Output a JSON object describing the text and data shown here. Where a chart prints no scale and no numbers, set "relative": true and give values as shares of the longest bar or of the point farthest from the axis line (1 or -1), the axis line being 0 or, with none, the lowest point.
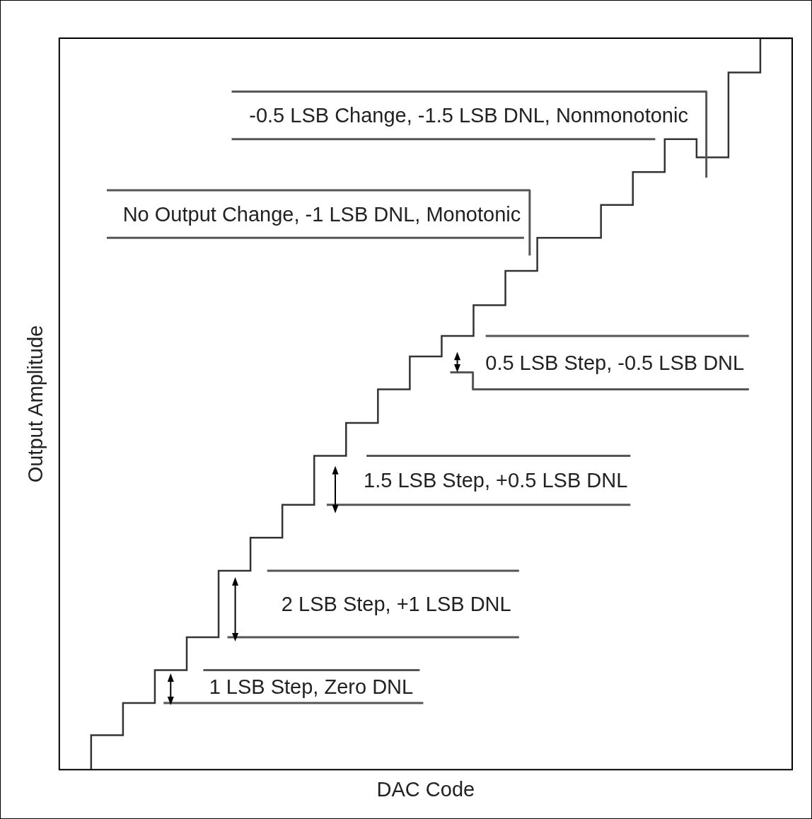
{
  "chart_data": {
    "type": "step",
    "xlabel": "DAC Code",
    "ylabel": "Output Amplitude",
    "relative": true,
    "tick_labels": false,
    "grid": false,
    "legend": false,
    "marker": "none",
    "categories": [
      null,
      null,
      null,
      null,
      null,
      null,
      null,
      null,
      null,
      null,
      null,
      null,
      null,
      null,
      null,
      null,
      null,
      null,
      null,
      null,
      null,
      null,
      null,
      null
    ],
    "series": [
      {
        "color": "#333333",
        "values": [
          null,
          0,
          0.047,
          0.091,
          0.136,
          0.181,
          0.272,
          0.317,
          0.362,
          0.429,
          0.474,
          0.52,
          0.565,
          0.593,
          0.635,
          0.682,
          0.727,
          0.727,
          0.772,
          0.817,
          0.862,
          0.837,
          0.953,
          1
        ]
      }
    ],
    "ref_lines": [
      {
        "axis": "y",
        "value": 0.136,
        "label": "1 LSB Step, Zero DNL",
        "color": "#555555"
      },
      {
        "axis": "y",
        "value": 0.091,
        "color": "#555555"
      },
      {
        "axis": "y",
        "value": 0.272,
        "label": "2 LSB Step, +1 LSB DNL",
        "color": "#555555"
      },
      {
        "axis": "y",
        "value": 0.181,
        "color": "#555555"
      },
      {
        "axis": "y",
        "value": 0.429,
        "label": "1.5 LSB Step, +0.5 LSB DNL",
        "color": "#555555"
      },
      {
        "axis": "y",
        "value": 0.362,
        "color": "#555555"
      },
      {
        "axis": "y",
        "value": 0.593,
        "label": "0.5 LSB Step, -0.5 LSB DNL",
        "color": "#555555"
      },
      {
        "axis": "y",
        "value": 0.52,
        "color": "#555555"
      },
      {
        "axis": "y",
        "value": 0.792,
        "label": "No Output Change, -1 LSB DNL, Monotonic",
        "color": "#555555"
      },
      {
        "axis": "y",
        "value": 0.727,
        "color": "#555555"
      },
      {
        "axis": "y",
        "value": 0.927,
        "label": "-0.5 LSB Change, -1.5 LSB DNL, Nonmonotonic",
        "color": "#555555"
      },
      {
        "axis": "y",
        "value": 0.862,
        "color": "#555555"
      }
    ]
  }
}
